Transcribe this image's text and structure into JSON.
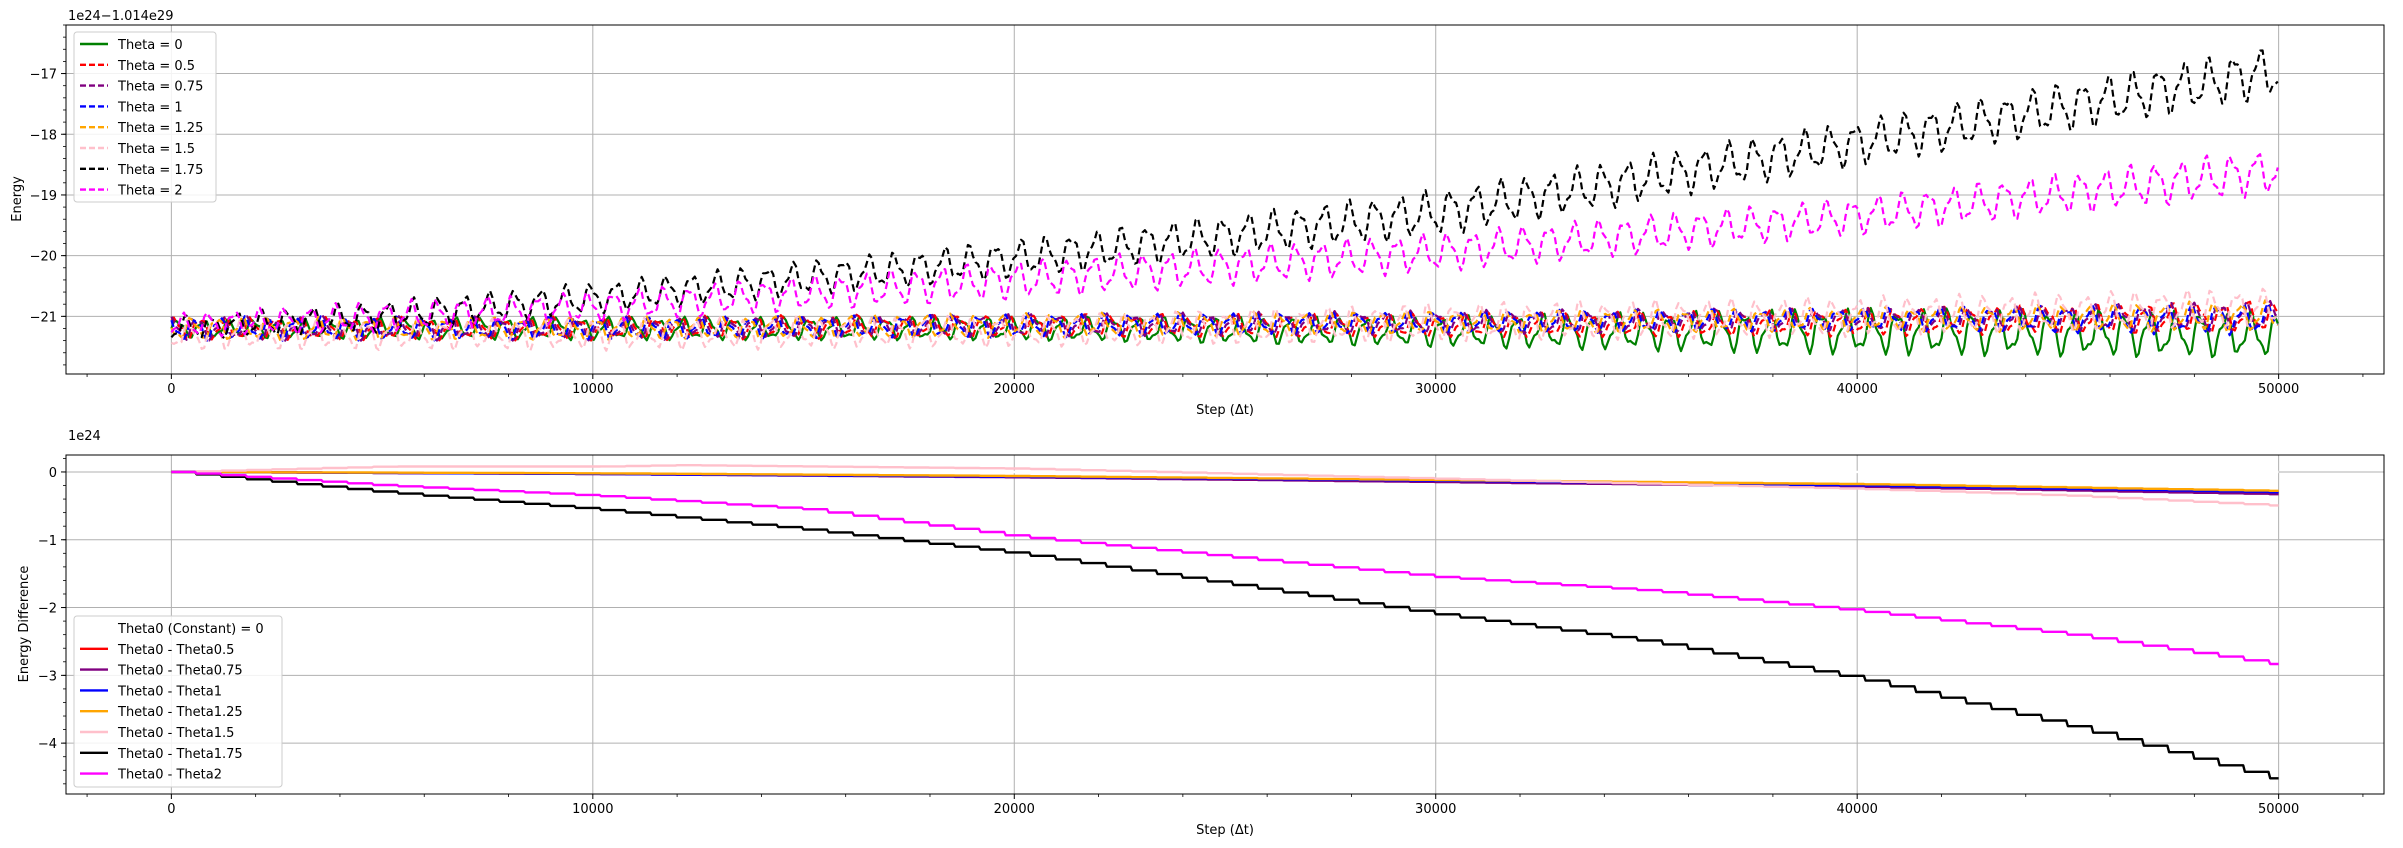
{
  "chart_data": [
    {
      "type": "line",
      "title": "",
      "offset_text": "1e24−1.014e29",
      "xlabel": "Step (Δt)",
      "ylabel": "Energy",
      "xlim": [
        -2500,
        52500
      ],
      "ylim": [
        -21.95,
        -16.2
      ],
      "x_ticks": [
        0,
        10000,
        20000,
        30000,
        40000,
        50000
      ],
      "y_ticks": [
        -17,
        -18,
        -19,
        -20,
        -21
      ],
      "grid": true,
      "legend_position": "upper-left",
      "series": [
        {
          "name": "Theta = 0",
          "color": "#008000",
          "dash": "solid",
          "x": [
            0,
            10000,
            20000,
            30000,
            40000,
            50000
          ],
          "center": [
            -21.2,
            -21.2,
            -21.2,
            -21.25,
            -21.25,
            -21.3
          ],
          "amplitude": [
            0.12,
            0.15,
            0.15,
            0.2,
            0.3,
            0.3
          ],
          "period": 600
        },
        {
          "name": "Theta = 0.5",
          "color": "#ff0000",
          "dash": "dashed",
          "x": [
            0,
            10000,
            20000,
            30000,
            40000,
            50000
          ],
          "center": [
            -21.2,
            -21.2,
            -21.15,
            -21.15,
            -21.1,
            -21.0
          ],
          "amplitude": [
            0.15,
            0.15,
            0.15,
            0.15,
            0.18,
            0.2
          ],
          "period": 600
        },
        {
          "name": "Theta = 0.75",
          "color": "#800080",
          "dash": "dashed",
          "x": [
            0,
            10000,
            20000,
            30000,
            40000,
            50000
          ],
          "center": [
            -21.2,
            -21.2,
            -21.15,
            -21.1,
            -21.05,
            -21.0
          ],
          "amplitude": [
            0.15,
            0.15,
            0.15,
            0.15,
            0.15,
            0.2
          ],
          "period": 600
        },
        {
          "name": "Theta = 1",
          "color": "#0000ff",
          "dash": "dashed",
          "x": [
            0,
            10000,
            20000,
            30000,
            40000,
            50000
          ],
          "center": [
            -21.2,
            -21.2,
            -21.15,
            -21.1,
            -21.05,
            -21.05
          ],
          "amplitude": [
            0.15,
            0.15,
            0.15,
            0.15,
            0.15,
            0.2
          ],
          "period": 600
        },
        {
          "name": "Theta = 1.25",
          "color": "#ffa500",
          "dash": "dashed",
          "x": [
            0,
            10000,
            20000,
            30000,
            40000,
            50000
          ],
          "center": [
            -21.2,
            -21.2,
            -21.15,
            -21.1,
            -21.05,
            -21.0
          ],
          "amplitude": [
            0.15,
            0.15,
            0.15,
            0.15,
            0.15,
            0.2
          ],
          "period": 600
        },
        {
          "name": "Theta = 1.5",
          "color": "#ffc0cb",
          "dash": "dashed",
          "x": [
            0,
            10000,
            20000,
            30000,
            40000,
            50000
          ],
          "center": [
            -21.3,
            -21.3,
            -21.25,
            -21.1,
            -21.0,
            -20.85
          ],
          "amplitude": [
            0.2,
            0.2,
            0.2,
            0.25,
            0.25,
            0.25
          ],
          "period": 600
        },
        {
          "name": "Theta = 1.75",
          "color": "#000000",
          "dash": "dashed",
          "x": [
            0,
            5000,
            10000,
            20000,
            30000,
            40000,
            50000
          ],
          "center": [
            -21.2,
            -21.0,
            -20.7,
            -20.05,
            -19.3,
            -18.15,
            -16.95
          ],
          "amplitude": [
            0.15,
            0.2,
            0.2,
            0.25,
            0.3,
            0.3,
            0.35
          ],
          "period": 600
        },
        {
          "name": "Theta = 2",
          "color": "#ff00ff",
          "dash": "dashed",
          "x": [
            0,
            5000,
            10000,
            20000,
            30000,
            40000,
            50000
          ],
          "center": [
            -21.15,
            -21.0,
            -20.85,
            -20.4,
            -19.95,
            -19.35,
            -18.6
          ],
          "amplitude": [
            0.15,
            0.2,
            0.2,
            0.25,
            0.25,
            0.25,
            0.3
          ],
          "period": 600
        }
      ]
    },
    {
      "type": "line",
      "title": "",
      "offset_text": "1e24",
      "xlabel": "Step (Δt)",
      "ylabel": "Energy Difference",
      "xlim": [
        -2500,
        52500
      ],
      "ylim": [
        -4.75,
        0.25
      ],
      "x_ticks": [
        0,
        10000,
        20000,
        30000,
        40000,
        50000
      ],
      "y_ticks": [
        0,
        -1,
        -2,
        -3,
        -4
      ],
      "grid": true,
      "legend_position": "lower-left",
      "series": [
        {
          "name": "Theta0 (Constant) = 0",
          "color": "#ffffff",
          "dash": "solid",
          "x": [
            0,
            50000
          ],
          "y": [
            0,
            0
          ]
        },
        {
          "name": "Theta0 - Theta0.5",
          "color": "#ff0000",
          "dash": "solid",
          "x": [
            0,
            10000,
            20000,
            30000,
            40000,
            50000
          ],
          "y": [
            0,
            -0.03,
            -0.07,
            -0.13,
            -0.2,
            -0.3
          ]
        },
        {
          "name": "Theta0 - Theta0.75",
          "color": "#800080",
          "dash": "solid",
          "x": [
            0,
            10000,
            20000,
            30000,
            40000,
            50000
          ],
          "y": [
            0,
            -0.03,
            -0.08,
            -0.15,
            -0.22,
            -0.33
          ]
        },
        {
          "name": "Theta0 - Theta1",
          "color": "#0000ff",
          "dash": "solid",
          "x": [
            0,
            10000,
            20000,
            30000,
            40000,
            50000
          ],
          "y": [
            0,
            -0.03,
            -0.07,
            -0.13,
            -0.2,
            -0.3
          ]
        },
        {
          "name": "Theta0 - Theta1.25",
          "color": "#ffa500",
          "dash": "solid",
          "x": [
            0,
            10000,
            20000,
            30000,
            40000,
            50000
          ],
          "y": [
            0,
            -0.02,
            -0.06,
            -0.12,
            -0.18,
            -0.28
          ]
        },
        {
          "name": "Theta0 - Theta1.5",
          "color": "#ffc0cb",
          "dash": "solid",
          "x": [
            0,
            5000,
            10000,
            12000,
            20000,
            30000,
            40000,
            45000,
            50000
          ],
          "y": [
            0,
            0.08,
            0.08,
            0.1,
            0.05,
            -0.1,
            -0.25,
            -0.35,
            -0.5
          ]
        },
        {
          "name": "Theta0 - Theta1.75",
          "color": "#000000",
          "dash": "solid",
          "x": [
            0,
            5000,
            10000,
            15000,
            20000,
            25000,
            30000,
            35000,
            40000,
            45000,
            50000
          ],
          "y": [
            0,
            -0.3,
            -0.55,
            -0.85,
            -1.2,
            -1.65,
            -2.1,
            -2.5,
            -3.05,
            -3.75,
            -4.55
          ]
        },
        {
          "name": "Theta0 - Theta2",
          "color": "#ff00ff",
          "dash": "solid",
          "x": [
            0,
            5000,
            10000,
            15000,
            20000,
            25000,
            30000,
            35000,
            40000,
            45000,
            50000
          ],
          "y": [
            0,
            -0.2,
            -0.35,
            -0.55,
            -0.95,
            -1.25,
            -1.55,
            -1.75,
            -2.05,
            -2.4,
            -2.85
          ]
        }
      ]
    }
  ]
}
